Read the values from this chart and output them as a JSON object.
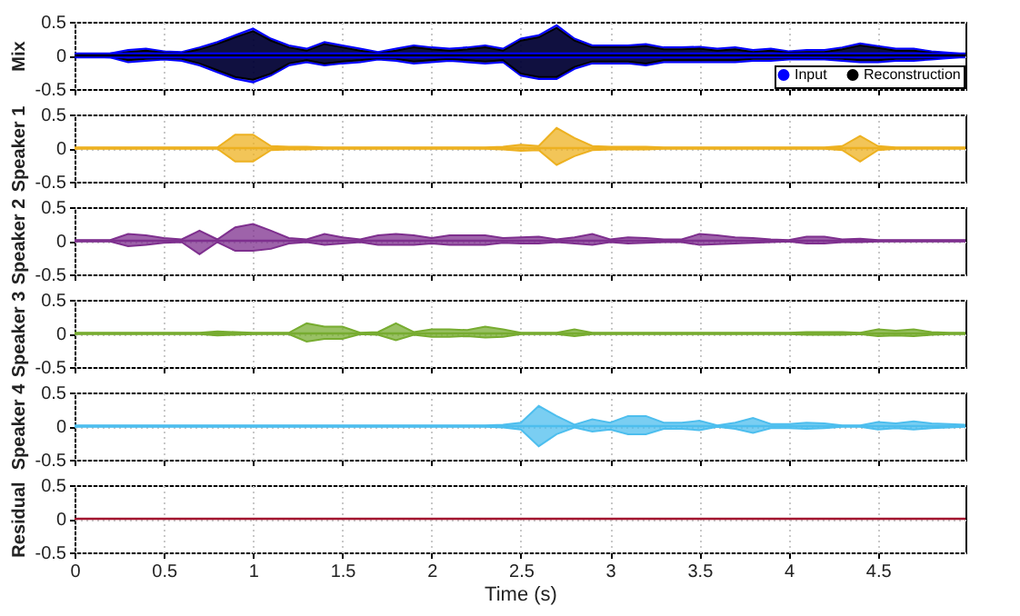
{
  "chart_data": [
    {
      "type": "line",
      "ylabel": "Mix",
      "xlim": [
        0,
        4.99
      ],
      "xticks": [
        0,
        0.5,
        1,
        1.5,
        2,
        2.5,
        3,
        3.5,
        4,
        4.5
      ],
      "ylim": [
        -0.5,
        0.5
      ],
      "yticks": [
        -0.5,
        0,
        0.5
      ],
      "grid": true,
      "tick_labels": "y",
      "legend": "bottom right",
      "x": [
        0,
        0.1,
        0.2,
        0.3,
        0.4,
        0.5,
        0.6,
        0.7,
        0.8,
        0.9,
        1,
        1.1,
        1.2,
        1.3,
        1.4,
        1.5,
        1.6,
        1.7,
        1.8,
        1.9,
        2,
        2.1,
        2.2,
        2.3,
        2.4,
        2.5,
        2.6,
        2.7,
        2.8,
        2.9,
        3,
        3.1,
        3.2,
        3.3,
        3.4,
        3.5,
        3.6,
        3.7,
        3.8,
        3.9,
        4,
        4.1,
        4.2,
        4.3,
        4.4,
        4.5,
        4.6,
        4.7,
        4.8,
        4.9,
        4.99
      ],
      "series": [
        {
          "name": "Input",
          "color": "#0000ff",
          "values": [
            0,
            0,
            0,
            0,
            0,
            0,
            0,
            0,
            0,
            0,
            0,
            0,
            0,
            0,
            0,
            0,
            0,
            0,
            0,
            0,
            0,
            0,
            0,
            0,
            0,
            0,
            0,
            0,
            0,
            0,
            0,
            0,
            0,
            0,
            0,
            0,
            0,
            0,
            0,
            0,
            0,
            0,
            0,
            0,
            0,
            0,
            0,
            0,
            0,
            0,
            0
          ],
          "upper": [
            0.02,
            0.02,
            0.03,
            0.08,
            0.1,
            0.06,
            0.05,
            0.12,
            0.2,
            0.3,
            0.4,
            0.25,
            0.15,
            0.1,
            0.2,
            0.15,
            0.1,
            0.05,
            0.1,
            0.15,
            0.12,
            0.1,
            0.12,
            0.15,
            0.1,
            0.25,
            0.3,
            0.45,
            0.25,
            0.15,
            0.15,
            0.15,
            0.17,
            0.12,
            0.12,
            0.13,
            0.1,
            0.12,
            0.08,
            0.1,
            0.06,
            0.08,
            0.08,
            0.12,
            0.18,
            0.14,
            0.1,
            0.1,
            0.06,
            0.04,
            0.02
          ],
          "lower": [
            -0.02,
            -0.02,
            -0.03,
            -0.1,
            -0.08,
            -0.06,
            -0.08,
            -0.15,
            -0.25,
            -0.35,
            -0.4,
            -0.3,
            -0.15,
            -0.1,
            -0.15,
            -0.12,
            -0.1,
            -0.06,
            -0.08,
            -0.12,
            -0.1,
            -0.08,
            -0.1,
            -0.12,
            -0.1,
            -0.3,
            -0.35,
            -0.35,
            -0.2,
            -0.12,
            -0.12,
            -0.12,
            -0.15,
            -0.1,
            -0.1,
            -0.1,
            -0.1,
            -0.1,
            -0.08,
            -0.08,
            -0.06,
            -0.06,
            -0.06,
            -0.08,
            -0.1,
            -0.1,
            -0.08,
            -0.08,
            -0.06,
            -0.04,
            -0.02
          ]
        },
        {
          "name": "Reconstruction",
          "color": "#000000",
          "values": [
            0,
            0,
            0,
            0,
            0,
            0,
            0,
            0,
            0,
            0,
            0,
            0,
            0,
            0,
            0,
            0,
            0,
            0,
            0,
            0,
            0,
            0,
            0,
            0,
            0,
            0,
            0,
            0,
            0,
            0,
            0,
            0,
            0,
            0,
            0,
            0,
            0,
            0,
            0,
            0,
            0,
            0,
            0,
            0,
            0,
            0,
            0,
            0,
            0,
            0,
            0
          ],
          "upper": [
            0.01,
            0.01,
            0.01,
            0.05,
            0.07,
            0.04,
            0.03,
            0.09,
            0.17,
            0.27,
            0.36,
            0.22,
            0.12,
            0.07,
            0.17,
            0.12,
            0.07,
            0.03,
            0.07,
            0.12,
            0.09,
            0.07,
            0.09,
            0.12,
            0.07,
            0.22,
            0.27,
            0.41,
            0.22,
            0.12,
            0.12,
            0.12,
            0.14,
            0.09,
            0.09,
            0.1,
            0.07,
            0.09,
            0.05,
            0.07,
            0.04,
            0.05,
            0.05,
            0.09,
            0.15,
            0.11,
            0.07,
            0.07,
            0.04,
            0.02,
            0.01
          ],
          "lower": [
            -0.01,
            -0.01,
            -0.01,
            -0.07,
            -0.05,
            -0.04,
            -0.05,
            -0.12,
            -0.22,
            -0.32,
            -0.36,
            -0.27,
            -0.12,
            -0.07,
            -0.12,
            -0.09,
            -0.07,
            -0.04,
            -0.05,
            -0.09,
            -0.07,
            -0.05,
            -0.07,
            -0.09,
            -0.07,
            -0.27,
            -0.32,
            -0.32,
            -0.17,
            -0.09,
            -0.09,
            -0.09,
            -0.12,
            -0.07,
            -0.07,
            -0.07,
            -0.07,
            -0.07,
            -0.05,
            -0.05,
            -0.04,
            -0.04,
            -0.04,
            -0.05,
            -0.07,
            -0.07,
            -0.05,
            -0.05,
            -0.04,
            -0.02,
            -0.01
          ]
        }
      ]
    },
    {
      "type": "line",
      "ylabel": "Speaker 1",
      "xlim": [
        0,
        4.99
      ],
      "xticks": [
        0,
        0.5,
        1,
        1.5,
        2,
        2.5,
        3,
        3.5,
        4,
        4.5
      ],
      "ylim": [
        -0.5,
        0.5
      ],
      "yticks": [
        -0.5,
        0,
        0.5
      ],
      "grid": true,
      "tick_labels": "y",
      "x": [
        0,
        0.1,
        0.2,
        0.3,
        0.4,
        0.5,
        0.6,
        0.7,
        0.8,
        0.9,
        1,
        1.1,
        1.2,
        1.3,
        1.4,
        1.5,
        1.6,
        1.7,
        1.8,
        1.9,
        2,
        2.1,
        2.2,
        2.3,
        2.4,
        2.5,
        2.6,
        2.7,
        2.8,
        2.9,
        3,
        3.1,
        3.2,
        3.3,
        3.4,
        3.5,
        3.6,
        3.7,
        3.8,
        3.9,
        4,
        4.1,
        4.2,
        4.3,
        4.4,
        4.5,
        4.6,
        4.7,
        4.8,
        4.9,
        4.99
      ],
      "series": [
        {
          "color": "#edb120",
          "values": [
            0,
            0,
            0,
            0,
            0,
            0,
            0,
            0,
            0,
            0,
            0,
            0,
            0,
            0,
            0,
            0,
            0,
            0,
            0,
            0,
            0,
            0,
            0,
            0,
            0,
            0,
            0,
            0,
            0,
            0,
            0,
            0,
            0,
            0,
            0,
            0,
            0,
            0,
            0,
            0,
            0,
            0,
            0,
            0,
            0,
            0,
            0,
            0,
            0,
            0,
            0
          ],
          "upper": [
            0.01,
            0.01,
            0.01,
            0.01,
            0.01,
            0.01,
            0.01,
            0.01,
            0.01,
            0.2,
            0.2,
            0.03,
            0.02,
            0.02,
            0.01,
            0.01,
            0.01,
            0.01,
            0.01,
            0.01,
            0.01,
            0.01,
            0.01,
            0.01,
            0.02,
            0.05,
            0.03,
            0.3,
            0.15,
            0.03,
            0.02,
            0.02,
            0.02,
            0.01,
            0.01,
            0.01,
            0.01,
            0.01,
            0.01,
            0.01,
            0.01,
            0.01,
            0.01,
            0.03,
            0.18,
            0.03,
            0.01,
            0.01,
            0.01,
            0.01,
            0.01
          ],
          "lower": [
            -0.01,
            -0.01,
            -0.01,
            -0.01,
            -0.01,
            -0.01,
            -0.01,
            -0.01,
            -0.01,
            -0.2,
            -0.2,
            -0.03,
            -0.02,
            -0.02,
            -0.01,
            -0.01,
            -0.01,
            -0.01,
            -0.01,
            -0.01,
            -0.01,
            -0.01,
            -0.01,
            -0.01,
            -0.02,
            -0.04,
            -0.03,
            -0.25,
            -0.12,
            -0.03,
            -0.02,
            -0.02,
            -0.02,
            -0.01,
            -0.01,
            -0.01,
            -0.01,
            -0.01,
            -0.01,
            -0.01,
            -0.01,
            -0.01,
            -0.01,
            -0.03,
            -0.2,
            -0.03,
            -0.01,
            -0.01,
            -0.01,
            -0.01,
            -0.01
          ]
        }
      ]
    },
    {
      "type": "line",
      "ylabel": "Speaker 2",
      "xlim": [
        0,
        4.99
      ],
      "xticks": [
        0,
        0.5,
        1,
        1.5,
        2,
        2.5,
        3,
        3.5,
        4,
        4.5
      ],
      "ylim": [
        -0.5,
        0.5
      ],
      "yticks": [
        -0.5,
        0,
        0.5
      ],
      "grid": true,
      "tick_labels": "y",
      "x": [
        0,
        0.1,
        0.2,
        0.3,
        0.4,
        0.5,
        0.6,
        0.7,
        0.8,
        0.9,
        1,
        1.1,
        1.2,
        1.3,
        1.4,
        1.5,
        1.6,
        1.7,
        1.8,
        1.9,
        2,
        2.1,
        2.2,
        2.3,
        2.4,
        2.5,
        2.6,
        2.7,
        2.8,
        2.9,
        3,
        3.1,
        3.2,
        3.3,
        3.4,
        3.5,
        3.6,
        3.7,
        3.8,
        3.9,
        4,
        4.1,
        4.2,
        4.3,
        4.4,
        4.5,
        4.6,
        4.7,
        4.8,
        4.9,
        4.99
      ],
      "series": [
        {
          "color": "#7e2f8e",
          "values": [
            0,
            0,
            0,
            0,
            0,
            0,
            0,
            0,
            0,
            0,
            0,
            0,
            0,
            0,
            0,
            0,
            0,
            0,
            0,
            0,
            0,
            0,
            0,
            0,
            0,
            0,
            0,
            0,
            0,
            0,
            0,
            0,
            0,
            0,
            0,
            0,
            0,
            0,
            0,
            0,
            0,
            0,
            0,
            0,
            0,
            0,
            0,
            0,
            0,
            0,
            0
          ],
          "upper": [
            0.01,
            0.01,
            0.01,
            0.1,
            0.08,
            0.04,
            0.02,
            0.15,
            0.02,
            0.2,
            0.25,
            0.15,
            0.04,
            0.02,
            0.1,
            0.05,
            0.02,
            0.08,
            0.1,
            0.08,
            0.04,
            0.08,
            0.08,
            0.08,
            0.04,
            0.05,
            0.06,
            0.02,
            0.05,
            0.1,
            0.02,
            0.05,
            0.04,
            0.02,
            0.02,
            0.1,
            0.08,
            0.05,
            0.04,
            0.02,
            0.01,
            0.06,
            0.06,
            0.02,
            0.03,
            0.01,
            0.01,
            0.01,
            0.01,
            0.01,
            0.01
          ],
          "lower": [
            -0.01,
            -0.01,
            -0.01,
            -0.08,
            -0.06,
            -0.03,
            -0.02,
            -0.2,
            -0.02,
            -0.15,
            -0.15,
            -0.12,
            -0.04,
            -0.02,
            -0.06,
            -0.04,
            -0.02,
            -0.06,
            -0.06,
            -0.06,
            -0.04,
            -0.06,
            -0.06,
            -0.06,
            -0.03,
            -0.04,
            -0.04,
            -0.02,
            -0.04,
            -0.06,
            -0.02,
            -0.04,
            -0.03,
            -0.02,
            -0.02,
            -0.06,
            -0.05,
            -0.04,
            -0.03,
            -0.02,
            -0.01,
            -0.04,
            -0.04,
            -0.02,
            -0.02,
            -0.01,
            -0.01,
            -0.01,
            -0.01,
            -0.01,
            -0.01
          ]
        }
      ]
    },
    {
      "type": "line",
      "ylabel": "Speaker 3",
      "xlim": [
        0,
        4.99
      ],
      "xticks": [
        0,
        0.5,
        1,
        1.5,
        2,
        2.5,
        3,
        3.5,
        4,
        4.5
      ],
      "ylim": [
        -0.5,
        0.5
      ],
      "yticks": [
        -0.5,
        0,
        0.5
      ],
      "grid": true,
      "tick_labels": "y",
      "x": [
        0,
        0.1,
        0.2,
        0.3,
        0.4,
        0.5,
        0.6,
        0.7,
        0.8,
        0.9,
        1,
        1.1,
        1.2,
        1.3,
        1.4,
        1.5,
        1.6,
        1.7,
        1.8,
        1.9,
        2,
        2.1,
        2.2,
        2.3,
        2.4,
        2.5,
        2.6,
        2.7,
        2.8,
        2.9,
        3,
        3.1,
        3.2,
        3.3,
        3.4,
        3.5,
        3.6,
        3.7,
        3.8,
        3.9,
        4,
        4.1,
        4.2,
        4.3,
        4.4,
        4.5,
        4.6,
        4.7,
        4.8,
        4.9,
        4.99
      ],
      "series": [
        {
          "color": "#77ac30",
          "values": [
            0,
            0,
            0,
            0,
            0,
            0,
            0,
            0,
            0,
            0,
            0,
            0,
            0,
            0,
            0,
            0,
            0,
            0,
            0,
            0,
            0,
            0,
            0,
            0,
            0,
            0,
            0,
            0,
            0,
            0,
            0,
            0,
            0,
            0,
            0,
            0,
            0,
            0,
            0,
            0,
            0,
            0,
            0,
            0,
            0,
            0,
            0,
            0,
            0,
            0,
            0
          ],
          "upper": [
            0.01,
            0.01,
            0.01,
            0.01,
            0.01,
            0.01,
            0.01,
            0.01,
            0.03,
            0.02,
            0.01,
            0.01,
            0.01,
            0.15,
            0.1,
            0.1,
            0.01,
            0.02,
            0.15,
            0.02,
            0.06,
            0.06,
            0.05,
            0.1,
            0.06,
            0.01,
            0.01,
            0.01,
            0.06,
            0.01,
            0.01,
            0.01,
            0.01,
            0.01,
            0.01,
            0.01,
            0.01,
            0.01,
            0.01,
            0.01,
            0.01,
            0.02,
            0.02,
            0.02,
            0.01,
            0.06,
            0.04,
            0.06,
            0.02,
            0.01,
            0.01
          ],
          "lower": [
            -0.01,
            -0.01,
            -0.01,
            -0.01,
            -0.01,
            -0.01,
            -0.01,
            -0.01,
            -0.03,
            -0.02,
            -0.01,
            -0.01,
            -0.01,
            -0.12,
            -0.08,
            -0.08,
            -0.01,
            -0.02,
            -0.1,
            -0.02,
            -0.05,
            -0.05,
            -0.04,
            -0.06,
            -0.05,
            -0.01,
            -0.01,
            -0.01,
            -0.04,
            -0.01,
            -0.01,
            -0.01,
            -0.01,
            -0.01,
            -0.01,
            -0.01,
            -0.01,
            -0.01,
            -0.01,
            -0.01,
            -0.01,
            -0.02,
            -0.02,
            -0.02,
            -0.01,
            -0.04,
            -0.03,
            -0.04,
            -0.02,
            -0.01,
            -0.01
          ]
        }
      ]
    },
    {
      "type": "line",
      "ylabel": "Speaker 4",
      "xlim": [
        0,
        4.99
      ],
      "xticks": [
        0,
        0.5,
        1,
        1.5,
        2,
        2.5,
        3,
        3.5,
        4,
        4.5
      ],
      "ylim": [
        -0.5,
        0.5
      ],
      "yticks": [
        -0.5,
        0,
        0.5
      ],
      "grid": true,
      "tick_labels": "y",
      "x": [
        0,
        0.1,
        0.2,
        0.3,
        0.4,
        0.5,
        0.6,
        0.7,
        0.8,
        0.9,
        1,
        1.1,
        1.2,
        1.3,
        1.4,
        1.5,
        1.6,
        1.7,
        1.8,
        1.9,
        2,
        2.1,
        2.2,
        2.3,
        2.4,
        2.5,
        2.6,
        2.7,
        2.8,
        2.9,
        3,
        3.1,
        3.2,
        3.3,
        3.4,
        3.5,
        3.6,
        3.7,
        3.8,
        3.9,
        4,
        4.1,
        4.2,
        4.3,
        4.4,
        4.5,
        4.6,
        4.7,
        4.8,
        4.9,
        4.99
      ],
      "series": [
        {
          "color": "#4dbeee",
          "values": [
            0,
            0,
            0,
            0,
            0,
            0,
            0,
            0,
            0,
            0,
            0,
            0,
            0,
            0,
            0,
            0,
            0,
            0,
            0,
            0,
            0,
            0,
            0,
            0,
            0,
            0,
            0,
            0,
            0,
            0,
            0,
            0,
            0,
            0,
            0,
            0,
            0,
            0,
            0,
            0,
            0,
            0,
            0,
            0,
            0,
            0,
            0,
            0,
            0,
            0,
            0
          ],
          "upper": [
            0.01,
            0.01,
            0.01,
            0.01,
            0.01,
            0.01,
            0.01,
            0.01,
            0.01,
            0.01,
            0.01,
            0.01,
            0.01,
            0.01,
            0.01,
            0.01,
            0.01,
            0.01,
            0.01,
            0.01,
            0.01,
            0.01,
            0.01,
            0.01,
            0.02,
            0.05,
            0.3,
            0.15,
            0.02,
            0.1,
            0.05,
            0.15,
            0.15,
            0.05,
            0.05,
            0.08,
            0.01,
            0.05,
            0.12,
            0.03,
            0.03,
            0.05,
            0.04,
            0.01,
            0.01,
            0.06,
            0.04,
            0.07,
            0.04,
            0.03,
            0.02
          ],
          "lower": [
            -0.01,
            -0.01,
            -0.01,
            -0.01,
            -0.01,
            -0.01,
            -0.01,
            -0.01,
            -0.01,
            -0.01,
            -0.01,
            -0.01,
            -0.01,
            -0.01,
            -0.01,
            -0.01,
            -0.01,
            -0.01,
            -0.01,
            -0.01,
            -0.01,
            -0.01,
            -0.01,
            -0.01,
            -0.02,
            -0.05,
            -0.3,
            -0.12,
            -0.02,
            -0.08,
            -0.05,
            -0.12,
            -0.12,
            -0.04,
            -0.04,
            -0.06,
            -0.01,
            -0.04,
            -0.1,
            -0.03,
            -0.03,
            -0.04,
            -0.03,
            -0.01,
            -0.01,
            -0.05,
            -0.03,
            -0.05,
            -0.03,
            -0.02,
            -0.01
          ]
        }
      ]
    },
    {
      "type": "line",
      "ylabel": "Residual",
      "xlabel": "Time (s)",
      "xlim": [
        0,
        4.99
      ],
      "xticks": [
        0,
        0.5,
        1,
        1.5,
        2,
        2.5,
        3,
        3.5,
        4,
        4.5
      ],
      "ylim": [
        -0.5,
        0.5
      ],
      "yticks": [
        -0.5,
        0,
        0.5
      ],
      "grid": true,
      "x": [
        0,
        0.1,
        0.2,
        0.3,
        0.4,
        0.5,
        0.6,
        0.7,
        0.8,
        0.9,
        1,
        1.1,
        1.2,
        1.3,
        1.4,
        1.5,
        1.6,
        1.7,
        1.8,
        1.9,
        2,
        2.1,
        2.2,
        2.3,
        2.4,
        2.5,
        2.6,
        2.7,
        2.8,
        2.9,
        3,
        3.1,
        3.2,
        3.3,
        3.4,
        3.5,
        3.6,
        3.7,
        3.8,
        3.9,
        4,
        4.1,
        4.2,
        4.3,
        4.4,
        4.5,
        4.6,
        4.7,
        4.8,
        4.9,
        4.99
      ],
      "series": [
        {
          "color": "#a2142f",
          "values": [
            0,
            0,
            0,
            0,
            0,
            0,
            0,
            0,
            0,
            0,
            0,
            0,
            0,
            0,
            0,
            0,
            0,
            0,
            0,
            0,
            0,
            0,
            0,
            0,
            0,
            0,
            0,
            0,
            0,
            0,
            0,
            0,
            0,
            0,
            0,
            0,
            0,
            0,
            0,
            0,
            0,
            0,
            0,
            0,
            0,
            0,
            0,
            0,
            0,
            0,
            0
          ]
        }
      ]
    }
  ]
}
